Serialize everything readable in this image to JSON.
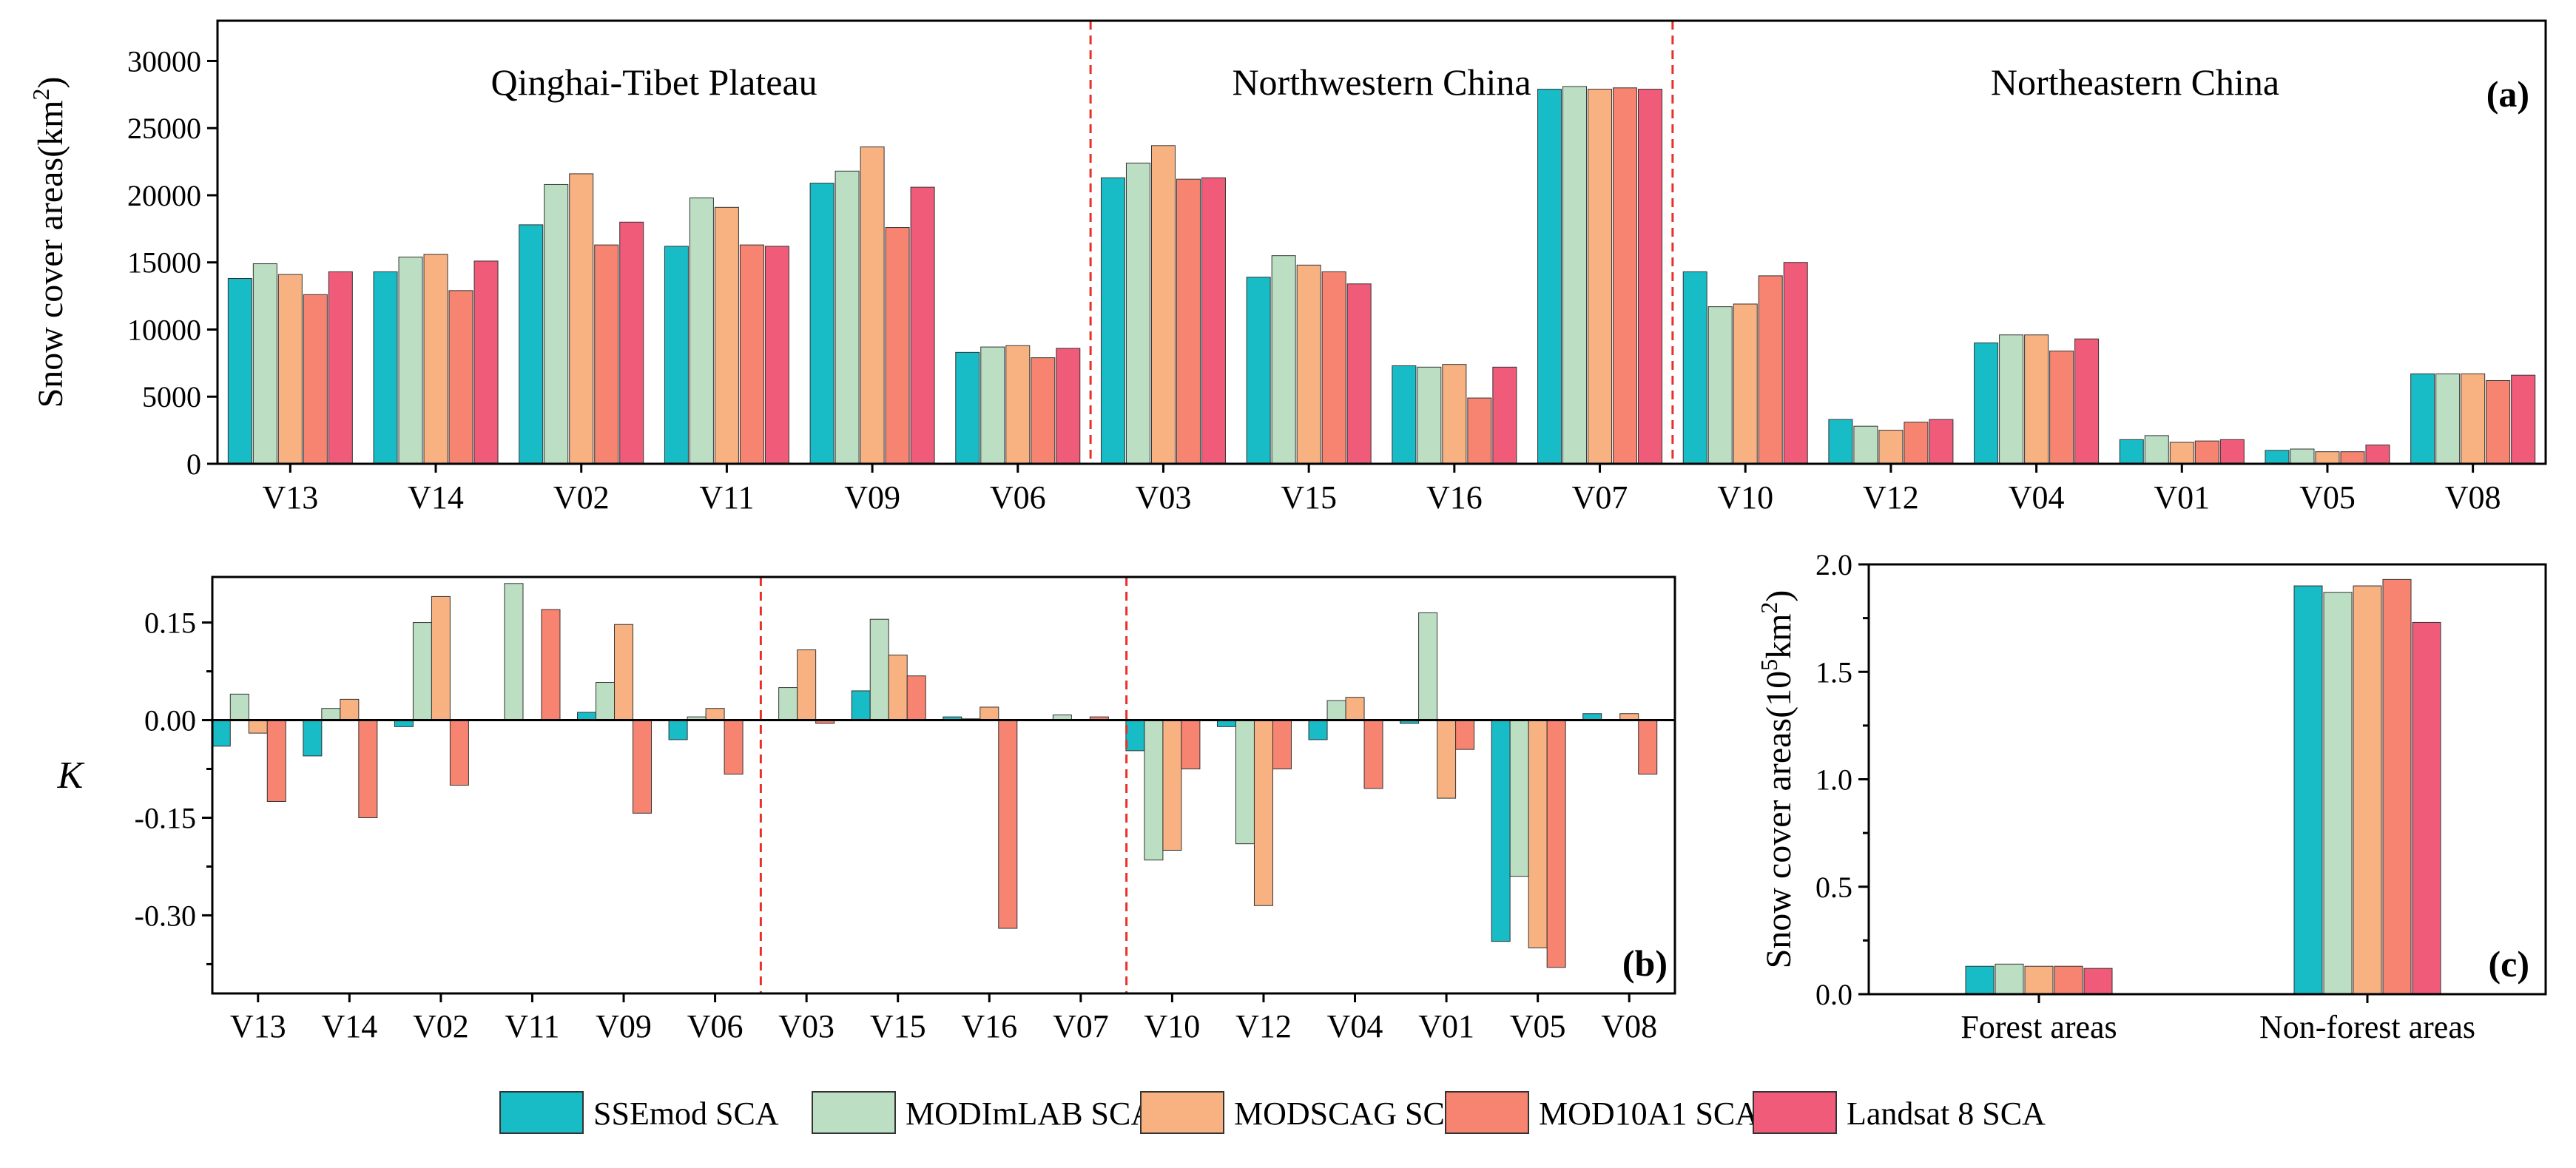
{
  "colors": {
    "axis": "#000000",
    "divider": "#e8302a"
  },
  "legend": [
    {
      "label": "SSEmod SCA",
      "color": "#17bcc6"
    },
    {
      "label": "MODImLAB SCA",
      "color": "#bcdfc4"
    },
    {
      "label": "MODSCAG SCA",
      "color": "#f8b282"
    },
    {
      "label": "MOD10A1 SCA",
      "color": "#f78470"
    },
    {
      "label": "Landsat 8 SCA",
      "color": "#ef5b79"
    }
  ],
  "chart_data": [
    {
      "panel": "(a)",
      "type": "bar",
      "ylabel": "Snow cover areas(km²)",
      "ylabel_main": "Snow cover areas(km",
      "ylabel_sup": "2",
      "ylabel_end": ")",
      "ylim": [
        0,
        33000
      ],
      "yticks": [
        0,
        5000,
        10000,
        15000,
        20000,
        25000,
        30000
      ],
      "ytick_labels": [
        "0",
        "5000",
        "10000",
        "15000",
        "20000",
        "25000",
        "30000"
      ],
      "categories": [
        "V13",
        "V14",
        "V02",
        "V11",
        "V09",
        "V06",
        "V03",
        "V15",
        "V16",
        "V07",
        "V10",
        "V12",
        "V04",
        "V01",
        "V05",
        "V08"
      ],
      "region_labels": [
        {
          "text": "Qinghai-Tibet Plateau",
          "start": 0,
          "end": 6
        },
        {
          "text": "Northwestern China",
          "start": 6,
          "end": 10
        },
        {
          "text": "Northeastern  China",
          "start": 10,
          "end": 16
        }
      ],
      "dividers_after": [
        6,
        10
      ],
      "series": [
        {
          "name": "SSEmod SCA",
          "values": [
            13800,
            14300,
            17800,
            16200,
            20900,
            8300,
            21300,
            13900,
            7300,
            27900,
            14300,
            3300,
            9000,
            1800,
            1000,
            6700
          ]
        },
        {
          "name": "MODImLAB SCA",
          "values": [
            14900,
            15400,
            20800,
            19800,
            21800,
            8700,
            22400,
            15500,
            7200,
            28100,
            11700,
            2800,
            9600,
            2100,
            1100,
            6700
          ]
        },
        {
          "name": "MODSCAG SCA",
          "values": [
            14100,
            15600,
            21600,
            19100,
            23600,
            8800,
            23700,
            14800,
            7400,
            27900,
            11900,
            2500,
            9600,
            1600,
            900,
            6700
          ]
        },
        {
          "name": "MOD10A1 SCA",
          "values": [
            12600,
            12900,
            16300,
            16300,
            17600,
            7900,
            21200,
            14300,
            4900,
            28000,
            14000,
            3100,
            8400,
            1700,
            900,
            6200
          ]
        },
        {
          "name": "Landsat 8 SCA",
          "values": [
            14300,
            15100,
            18000,
            16200,
            20600,
            8600,
            21300,
            13400,
            7200,
            27900,
            15000,
            3300,
            9300,
            1800,
            1400,
            6600
          ]
        }
      ]
    },
    {
      "panel": "(b)",
      "type": "bar",
      "ylabel": "K",
      "ylim": [
        -0.42,
        0.22
      ],
      "yticks": [
        -0.3,
        -0.15,
        0.0,
        0.15
      ],
      "ytick_labels": [
        "-0.30",
        "-0.15",
        "0.00",
        "0.15"
      ],
      "categories": [
        "V13",
        "V14",
        "V02",
        "V11",
        "V09",
        "V06",
        "V03",
        "V15",
        "V16",
        "V07",
        "V10",
        "V12",
        "V04",
        "V01",
        "V05",
        "V08"
      ],
      "dividers_after": [
        6,
        10
      ],
      "series": [
        {
          "name": "SSEmod SCA",
          "values": [
            -0.04,
            -0.055,
            -0.01,
            0.0,
            0.012,
            -0.03,
            0.0,
            0.045,
            0.005,
            0.0,
            -0.047,
            -0.01,
            -0.03,
            -0.005,
            -0.34,
            0.01
          ]
        },
        {
          "name": "MODImLAB SCA",
          "values": [
            0.04,
            0.018,
            0.15,
            0.21,
            0.058,
            0.005,
            0.05,
            0.155,
            0.002,
            0.008,
            -0.215,
            -0.19,
            0.03,
            0.165,
            -0.24,
            0.0
          ]
        },
        {
          "name": "MODSCAG SCA",
          "values": [
            -0.02,
            0.032,
            0.19,
            0.0,
            0.147,
            0.018,
            0.108,
            0.1,
            0.02,
            0.0,
            -0.2,
            -0.285,
            0.035,
            -0.12,
            -0.35,
            0.01
          ]
        },
        {
          "name": "MOD10A1 SCA",
          "values": [
            -0.125,
            -0.15,
            -0.1,
            0.17,
            -0.143,
            -0.083,
            -0.005,
            0.068,
            -0.32,
            0.005,
            -0.075,
            -0.075,
            -0.105,
            -0.045,
            -0.38,
            -0.083
          ]
        },
        {
          "name": "Landsat 8 SCA",
          "values": [
            0,
            0,
            0,
            0,
            0,
            0,
            0,
            0,
            0,
            0,
            0,
            0,
            0,
            0,
            0,
            0
          ]
        }
      ]
    },
    {
      "panel": "(c)",
      "type": "bar",
      "ylabel": "Snow cover areas(10⁵km²)",
      "ylabel_parts": [
        "Snow cover areas(10",
        "5",
        "km",
        "2",
        ")"
      ],
      "ylim": [
        0,
        2.0
      ],
      "yticks": [
        0.0,
        0.5,
        1.0,
        1.5,
        2.0
      ],
      "ytick_labels": [
        "0.0",
        "0.5",
        "1.0",
        "1.5",
        "2.0"
      ],
      "categories": [
        "Forest areas",
        "Non-forest areas"
      ],
      "series": [
        {
          "name": "SSEmod SCA",
          "values": [
            0.13,
            1.9
          ]
        },
        {
          "name": "MODImLAB SCA",
          "values": [
            0.14,
            1.87
          ]
        },
        {
          "name": "MODSCAG SCA",
          "values": [
            0.13,
            1.9
          ]
        },
        {
          "name": "MOD10A1 SCA",
          "values": [
            0.13,
            1.93
          ]
        },
        {
          "name": "Landsat 8 SCA",
          "values": [
            0.12,
            1.73
          ]
        }
      ]
    }
  ]
}
